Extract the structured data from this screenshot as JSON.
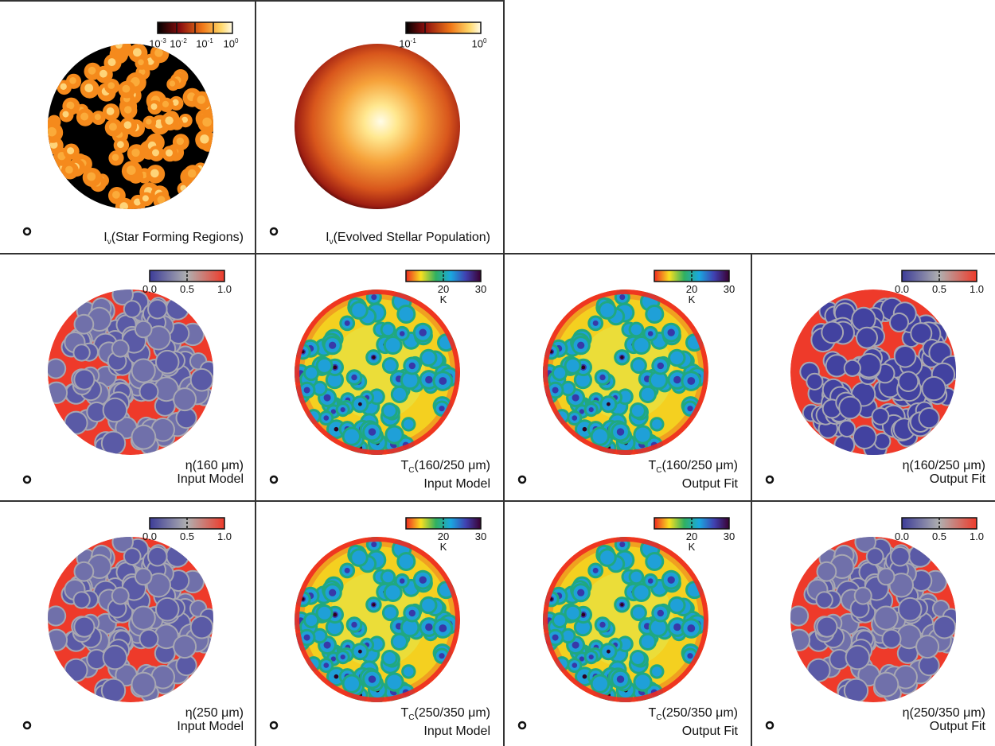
{
  "panels": {
    "star_forming": {
      "label_main": "I",
      "label_sub": "ν",
      "label_rest": "(Star Forming Regions)"
    },
    "evolved": {
      "label_main": "I",
      "label_sub": "ν",
      "label_rest": "(Evolved Stellar Population)"
    },
    "eta160_input": {
      "line1": "η(160 μm)",
      "line2": "Input Model"
    },
    "tc160250_input": {
      "line1_main": "T",
      "line1_sub": "C",
      "line1_rest": "(160/250 μm)",
      "line2": "Input Model"
    },
    "tc160250_output": {
      "line1_main": "T",
      "line1_sub": "C",
      "line1_rest": "(160/250 μm)",
      "line2": "Output Fit"
    },
    "eta160250_output": {
      "line1": "η(160/250 μm)",
      "line2": "Output Fit"
    },
    "eta250_input": {
      "line1": "η(250 μm)",
      "line2": "Input Model"
    },
    "tc250350_input": {
      "line1_main": "T",
      "line1_sub": "C",
      "line1_rest": "(250/350 μm)",
      "line2": "Input Model"
    },
    "tc250350_output": {
      "line1_main": "T",
      "line1_sub": "C",
      "line1_rest": "(250/350 μm)",
      "line2": "Output Fit"
    },
    "eta250350_output": {
      "line1": "η(250/350 μm)",
      "line2": "Output Fit"
    }
  },
  "colorbars": {
    "sfr": {
      "ticks": [
        "10",
        "10",
        "10",
        "10"
      ],
      "exps": [
        "-3",
        "-2",
        "-1",
        "0"
      ]
    },
    "evolved": {
      "ticks": [
        "10",
        "10"
      ],
      "exps": [
        "-1",
        "0"
      ]
    },
    "eta": {
      "ticks": [
        "0.0",
        "0.5",
        "1.0"
      ]
    },
    "temp": {
      "ticks": [
        "20",
        "30"
      ],
      "unit": "K"
    }
  },
  "colors": {
    "grid": "#333333",
    "eta_low": "#4a4aa0",
    "eta_mid": "#aaaaaa",
    "eta_high": "#ee3a2a",
    "sfr_bg": "#000000",
    "sfr_blob": "#f58a1c"
  }
}
